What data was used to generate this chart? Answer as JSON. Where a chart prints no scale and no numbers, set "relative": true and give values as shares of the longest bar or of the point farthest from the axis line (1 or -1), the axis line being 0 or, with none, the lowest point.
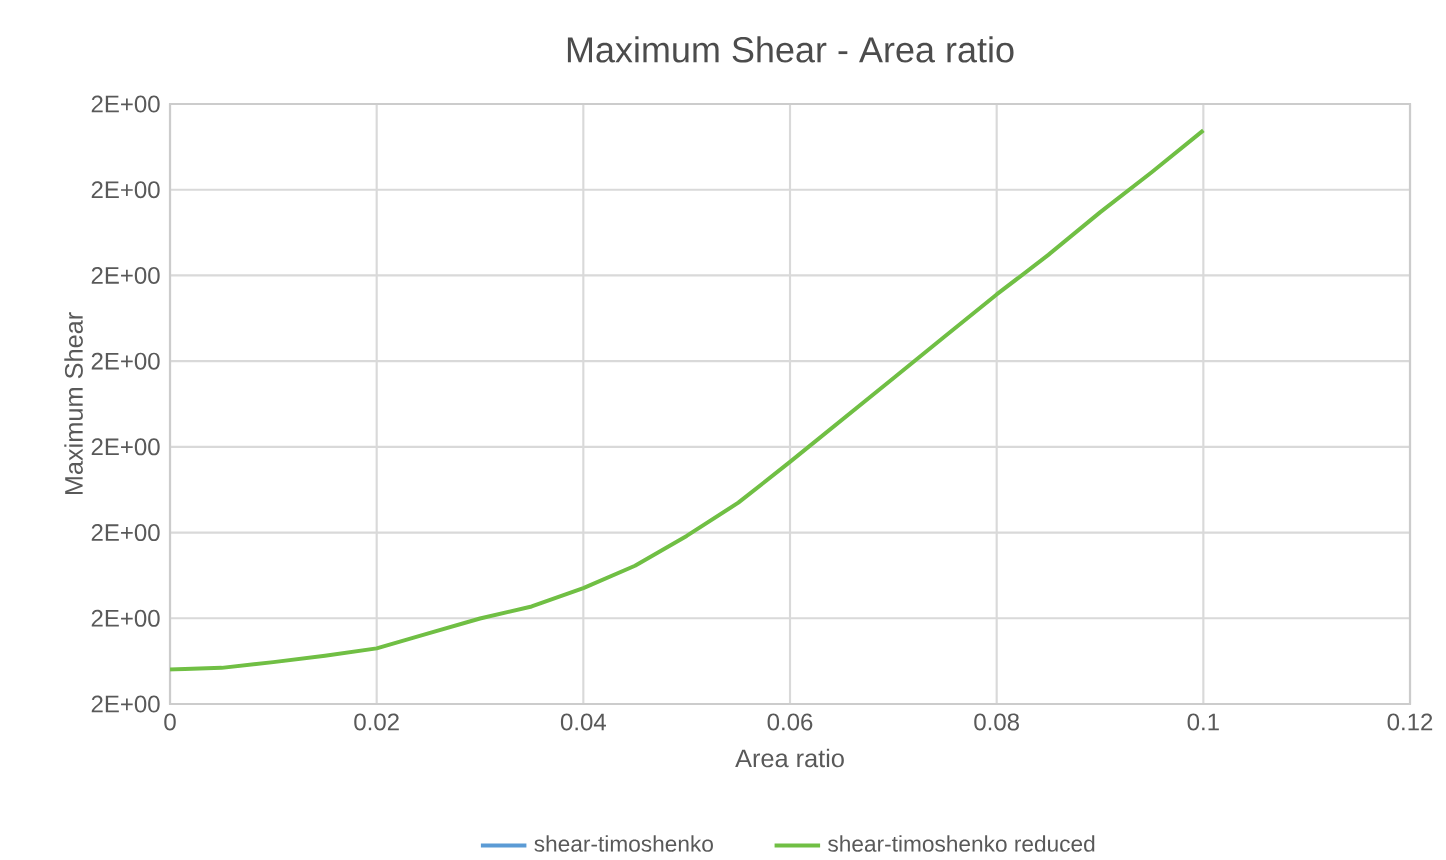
{
  "chart_data": {
    "type": "line",
    "title": "Maximum Shear - Area ratio",
    "xlabel": "Area ratio",
    "ylabel": "Maximum Shear",
    "x": [
      0,
      0.005,
      0.01,
      0.015,
      0.02,
      0.025,
      0.03,
      0.035,
      0.04,
      0.045,
      0.05,
      0.055,
      0.06,
      0.065,
      0.07,
      0.075,
      0.08,
      0.085,
      0.09,
      0.095,
      0.1
    ],
    "series": [
      {
        "name": "shear-timoshenko",
        "color": "#5b9bd5",
        "values": [
          null,
          null,
          null,
          null,
          null,
          null,
          null,
          null,
          null,
          null,
          null,
          null,
          null,
          null,
          null,
          null,
          null,
          null,
          null,
          null,
          null
        ]
      },
      {
        "name": "shear-timoshenko reduced",
        "color": "#70bf44",
        "values": [
          0.06,
          0.063,
          0.073,
          0.084,
          0.097,
          0.123,
          0.149,
          0.17,
          0.202,
          0.241,
          0.293,
          0.351,
          0.422,
          0.495,
          0.568,
          0.641,
          0.714,
          0.783,
          0.857,
          0.927,
          1
        ]
      }
    ],
    "xlim": [
      0,
      0.12
    ],
    "xticks": [
      0,
      0.02,
      0.04,
      0.06,
      0.08,
      0.1,
      0.12
    ],
    "relative": true,
    "annotations": [
      "2E+00",
      "2E+00",
      "2E+00",
      "2E+00",
      "2E+00",
      "2E+00",
      "2E+00",
      "2E+00"
    ],
    "grid": true,
    "legend": "bottom",
    "marker": "none",
    "line_style": "solid"
  }
}
